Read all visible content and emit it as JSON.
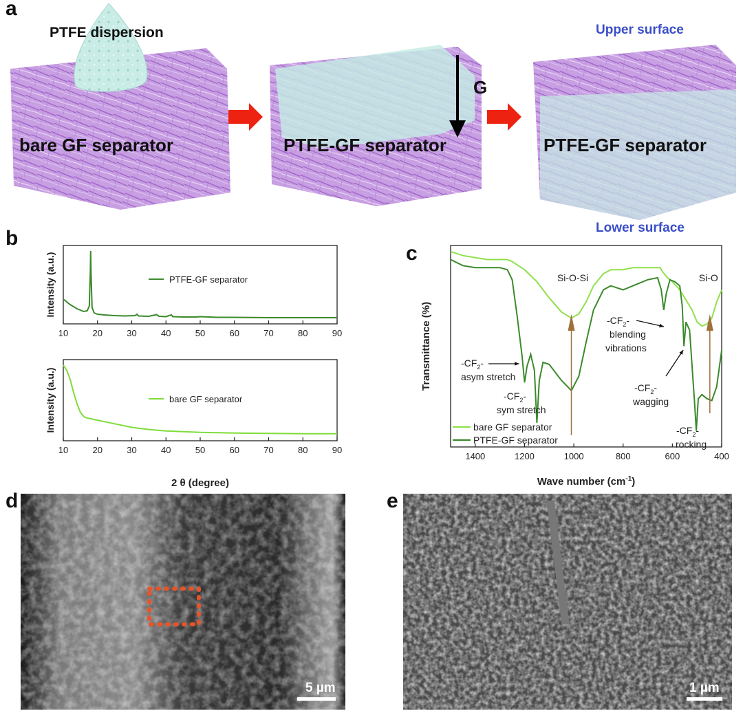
{
  "panels": {
    "a": "a",
    "b": "b",
    "c": "c",
    "d": "d",
    "e": "e"
  },
  "panel_a": {
    "dispersion_label": "PTFE dispersion",
    "bare_label": "bare GF separator",
    "mid_label": "PTFE-GF separator",
    "right_label": "PTFE-GF separator",
    "gravity_label": "G",
    "upper_surface": "Upper surface",
    "lower_surface": "Lower surface",
    "colors": {
      "fiber": "#b37fd6",
      "ptfe": "#bfe8e2",
      "arrow": "#ee2211",
      "upper_lower": "#3a4ec8"
    }
  },
  "chart_data": [
    {
      "type": "line",
      "panel": "b-top",
      "ylabel": "Intensity (a.u.)",
      "xlim": [
        10,
        90
      ],
      "xticks": [
        10,
        20,
        30,
        40,
        50,
        60,
        70,
        80,
        90
      ],
      "legend": "PTFE-GF separator",
      "color": "#3a8a2a",
      "x": [
        10,
        12,
        14,
        16,
        17,
        17.6,
        17.9,
        18.0,
        18.1,
        18.4,
        19,
        20,
        22,
        25,
        28,
        31,
        31.5,
        32,
        35,
        36.8,
        37.2,
        38,
        40,
        41.2,
        41.6,
        42,
        45,
        49,
        50,
        55,
        60,
        70,
        80,
        90
      ],
      "y": [
        0.3,
        0.22,
        0.16,
        0.12,
        0.13,
        0.2,
        0.7,
        1.0,
        0.7,
        0.18,
        0.1,
        0.08,
        0.07,
        0.06,
        0.055,
        0.06,
        0.08,
        0.055,
        0.05,
        0.07,
        0.075,
        0.05,
        0.045,
        0.065,
        0.07,
        0.045,
        0.04,
        0.04,
        0.045,
        0.035,
        0.035,
        0.03,
        0.03,
        0.03
      ]
    },
    {
      "type": "line",
      "panel": "b-bottom",
      "ylabel": "Intensity (a.u.)",
      "xlabel": "2 θ (degree)",
      "xlim": [
        10,
        90
      ],
      "xticks": [
        10,
        20,
        30,
        40,
        50,
        60,
        70,
        80,
        90
      ],
      "legend": "bare GF separator",
      "color": "#7fdc3a",
      "x": [
        10,
        11,
        12,
        13,
        14,
        15,
        16,
        17,
        18,
        20,
        22,
        25,
        28,
        30,
        35,
        40,
        45,
        50,
        60,
        70,
        80,
        90
      ],
      "y": [
        1.0,
        0.93,
        0.8,
        0.62,
        0.46,
        0.34,
        0.28,
        0.26,
        0.25,
        0.23,
        0.21,
        0.18,
        0.15,
        0.13,
        0.1,
        0.08,
        0.07,
        0.06,
        0.05,
        0.045,
        0.04,
        0.04
      ]
    },
    {
      "type": "line",
      "panel": "c",
      "xlabel": "Wave number (cm⁻¹)",
      "ylabel": "Transmittance (%)",
      "xlim": [
        1500,
        400
      ],
      "xticks": [
        1400,
        1200,
        1000,
        800,
        600,
        400
      ],
      "series": [
        {
          "name": "bare GF separator",
          "color": "#8fe04a",
          "x": [
            1500,
            1450,
            1400,
            1350,
            1300,
            1270,
            1250,
            1200,
            1150,
            1100,
            1050,
            1010,
            980,
            950,
            920,
            880,
            850,
            800,
            760,
            700,
            650,
            640,
            620,
            600,
            570,
            550,
            520,
            500,
            480,
            460,
            440,
            420,
            400
          ],
          "y": [
            0.97,
            0.95,
            0.94,
            0.93,
            0.93,
            0.93,
            0.92,
            0.88,
            0.82,
            0.74,
            0.67,
            0.64,
            0.66,
            0.72,
            0.8,
            0.86,
            0.88,
            0.88,
            0.89,
            0.89,
            0.89,
            0.87,
            0.84,
            0.82,
            0.78,
            0.74,
            0.68,
            0.62,
            0.6,
            0.61,
            0.64,
            0.72,
            0.78
          ]
        },
        {
          "name": "PTFE-GF separator",
          "color": "#3a8a2a",
          "x": [
            1500,
            1450,
            1400,
            1350,
            1300,
            1270,
            1250,
            1230,
            1210,
            1200,
            1190,
            1175,
            1160,
            1150,
            1140,
            1125,
            1100,
            1050,
            1010,
            980,
            950,
            920,
            880,
            850,
            800,
            760,
            700,
            660,
            645,
            635,
            625,
            610,
            590,
            570,
            560,
            553,
            545,
            530,
            520,
            510,
            503,
            495,
            480,
            460,
            440,
            420,
            400
          ],
          "y": [
            0.93,
            0.9,
            0.89,
            0.89,
            0.89,
            0.88,
            0.83,
            0.65,
            0.45,
            0.32,
            0.4,
            0.46,
            0.38,
            0.12,
            0.33,
            0.42,
            0.41,
            0.33,
            0.28,
            0.35,
            0.52,
            0.68,
            0.78,
            0.8,
            0.78,
            0.8,
            0.83,
            0.84,
            0.78,
            0.68,
            0.76,
            0.83,
            0.82,
            0.8,
            0.7,
            0.5,
            0.62,
            0.58,
            0.4,
            0.22,
            0.08,
            0.24,
            0.26,
            0.24,
            0.23,
            0.3,
            0.48
          ]
        }
      ],
      "annotations": [
        {
          "text": "Si-O-Si",
          "x": 1010
        },
        {
          "text": "Si-O",
          "x": 455
        },
        {
          "text": "-CF₂- asym stretch",
          "x": 1205
        },
        {
          "text": "-CF₂- sym stretch",
          "x": 1150
        },
        {
          "text": "-CF₂- blending vibrations",
          "x": 640
        },
        {
          "text": "-CF₂- wagging",
          "x": 555
        },
        {
          "text": "-CF₂- rocking",
          "x": 505
        }
      ]
    }
  ],
  "panel_c_labels": {
    "si_o_si": "Si-O-Si",
    "si_o": "Si-O",
    "cf2": "-CF",
    "sub2": "2",
    "dash": "-",
    "asym": "asym stretch",
    "sym": "sym stretch",
    "blending": "blending",
    "vibrations": "vibrations",
    "wagging": "wagging",
    "rocking": "rocking",
    "legend_bare": "bare GF separator",
    "legend_ptfe": "PTFE-GF separator",
    "xlabel_main": "Wave number (cm",
    "xlabel_sup": "-1",
    "xlabel_end": ")",
    "ylabel": "Transmittance (%)"
  },
  "panel_d": {
    "scale": "5 µm",
    "roi_color": "#e8542a"
  },
  "panel_e": {
    "scale": "1 µm"
  }
}
